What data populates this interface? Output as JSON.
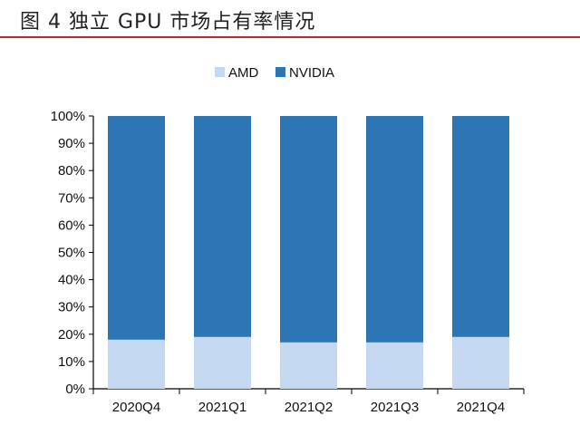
{
  "chart_data": {
    "type": "bar",
    "stacked": true,
    "title": "图 4 独立 GPU 市场占有率情况",
    "categories": [
      "2020Q4",
      "2021Q1",
      "2021Q2",
      "2021Q3",
      "2021Q4"
    ],
    "series": [
      {
        "name": "AMD",
        "color": "#c5d8f1",
        "values": [
          18,
          19,
          17,
          17,
          19
        ]
      },
      {
        "name": "NVIDIA",
        "color": "#2e75b6",
        "values": [
          82,
          81,
          83,
          83,
          81
        ]
      }
    ],
    "ylim": [
      0,
      100
    ],
    "yticks": [
      "0%",
      "10%",
      "20%",
      "30%",
      "40%",
      "50%",
      "60%",
      "70%",
      "80%",
      "90%",
      "100%"
    ],
    "xlabel": "",
    "ylabel": "",
    "grid": false,
    "legend_position": "top",
    "accent_color": "#c0282d"
  }
}
